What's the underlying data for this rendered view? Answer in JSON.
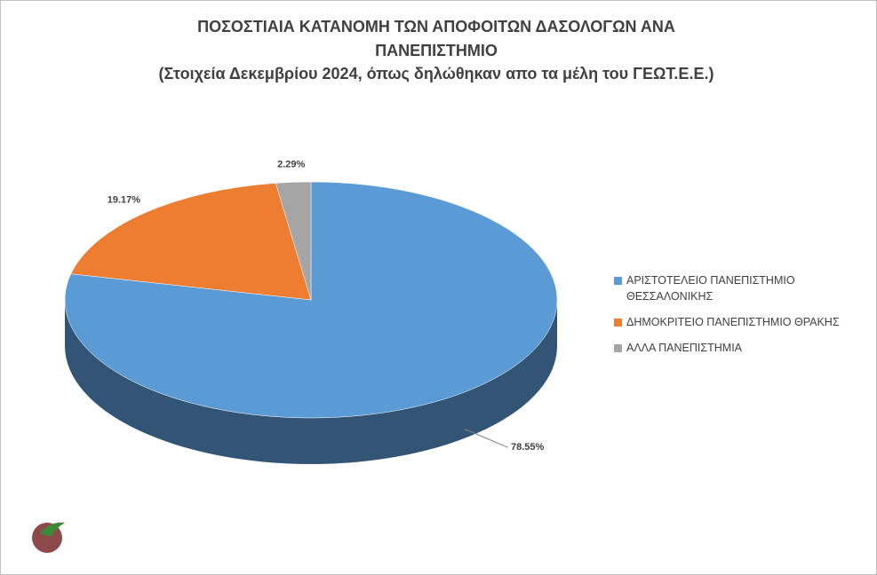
{
  "chart_data": {
    "type": "pie3d",
    "title": "ΠΟΣΟΣΤΙΑΙΑ ΚΑΤΑΝΟΜΗ ΤΩΝ ΑΠΟΦΟΙΤΩΝ ΔΑΣΟΛΟΓΩΝ ΑΝΑ ΠΑΝΕΠΙΣΤΗΜΙΟ",
    "subtitle": "(Στοιχεία Δεκεμβρίου 2024, όπως δηλώθηκαν απο τα μέλη του ΓΕΩΤ.Ε.Ε.)",
    "categories": [
      "ΑΡΙΣΤΟΤΕΛΕΙΟ ΠΑΝΕΠΙΣΤΗΜΙΟ ΘΕΣΣΑΛΟΝΙΚΗΣ",
      "ΔΗΜΟΚΡΙΤΕΙΟ ΠΑΝΕΠΙΣΤΗΜΙΟ ΘΡΑΚΗΣ",
      "ΑΛΛΑ ΠΑΝΕΠΙΣΤΗΜΙΑ"
    ],
    "values": [
      78.55,
      19.17,
      2.29
    ],
    "value_labels": [
      "78.55%",
      "19.17%",
      "2.29%"
    ],
    "colors": [
      "#5b9bd5",
      "#ed7d31",
      "#a5a5a5"
    ],
    "legend": "right"
  }
}
